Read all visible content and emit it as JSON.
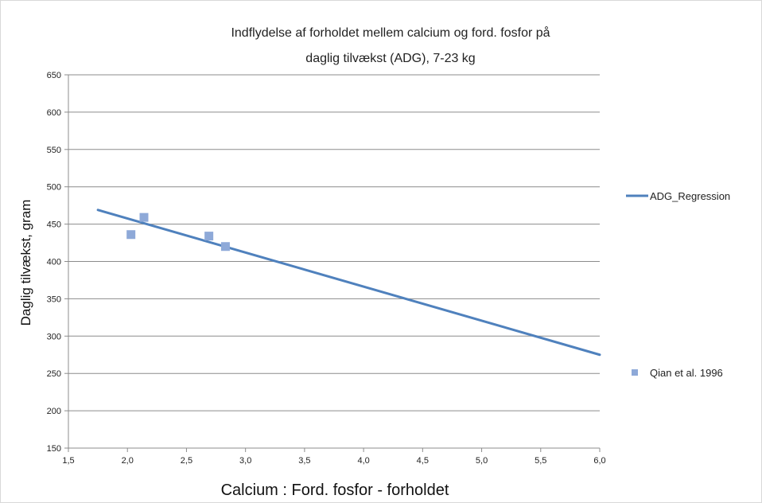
{
  "chart_data": {
    "type": "scatter",
    "title_lines": [
      "Indflydelse af forholdet mellem calcium og ford. fosfor på",
      "daglig tilvækst (ADG), 7-23 kg"
    ],
    "xlabel": "Calcium : Ford. fosfor - forholdet",
    "ylabel": "Daglig tilvækst, gram",
    "xlim": [
      1.5,
      6.0
    ],
    "ylim": [
      150,
      650
    ],
    "xticks": [
      1.5,
      2.0,
      2.5,
      3.0,
      3.5,
      4.0,
      4.5,
      5.0,
      5.5,
      6.0
    ],
    "xtick_labels": [
      "1,5",
      "2,0",
      "2,5",
      "3,0",
      "3,5",
      "4,0",
      "4,5",
      "5,0",
      "5,5",
      "6,0"
    ],
    "yticks": [
      150,
      200,
      250,
      300,
      350,
      400,
      450,
      500,
      550,
      600,
      650
    ],
    "ytick_labels": [
      "150",
      "200",
      "250",
      "300",
      "350",
      "400",
      "450",
      "500",
      "550",
      "600",
      "650"
    ],
    "grid": "horizontal",
    "legend_position": "right",
    "series": [
      {
        "name": "ADG_Regression",
        "kind": "line",
        "color": "#4F81BD",
        "x": [
          1.75,
          6.0
        ],
        "y": [
          469,
          275
        ]
      },
      {
        "name": "Qian et al. 1996",
        "kind": "scatter",
        "marker": "square",
        "color": "#8EA9D8",
        "x": [
          2.03,
          2.14,
          2.69,
          2.83
        ],
        "y": [
          436,
          459,
          434,
          420
        ]
      }
    ]
  }
}
